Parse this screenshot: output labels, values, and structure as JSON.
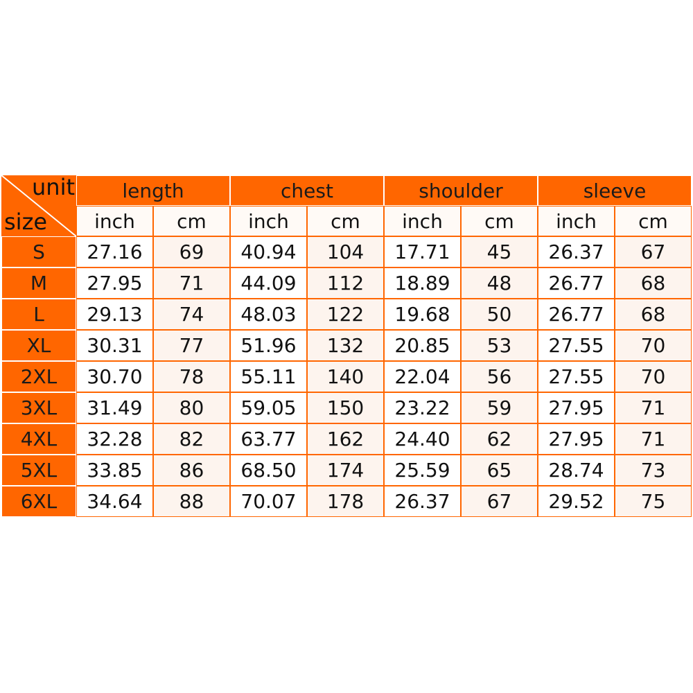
{
  "table": {
    "corner": {
      "top": "unit",
      "bottom": "size"
    },
    "groups": [
      "length",
      "chest",
      "shoulder",
      "sleeve"
    ],
    "subheaders": [
      "inch",
      "cm",
      "inch",
      "cm",
      "inch",
      "cm",
      "inch",
      "cm"
    ],
    "rows": [
      {
        "size": "S",
        "values": [
          "27.16",
          "69",
          "40.94",
          "104",
          "17.71",
          "45",
          "26.37",
          "67"
        ]
      },
      {
        "size": "M",
        "values": [
          "27.95",
          "71",
          "44.09",
          "112",
          "18.89",
          "48",
          "26.77",
          "68"
        ]
      },
      {
        "size": "L",
        "values": [
          "29.13",
          "74",
          "48.03",
          "122",
          "19.68",
          "50",
          "26.77",
          "68"
        ]
      },
      {
        "size": "XL",
        "values": [
          "30.31",
          "77",
          "51.96",
          "132",
          "20.85",
          "53",
          "27.55",
          "70"
        ]
      },
      {
        "size": "2XL",
        "values": [
          "30.70",
          "78",
          "55.11",
          "140",
          "22.04",
          "56",
          "27.55",
          "70"
        ]
      },
      {
        "size": "3XL",
        "values": [
          "31.49",
          "80",
          "59.05",
          "150",
          "23.22",
          "59",
          "27.95",
          "71"
        ]
      },
      {
        "size": "4XL",
        "values": [
          "32.28",
          "82",
          "63.77",
          "162",
          "24.40",
          "62",
          "27.95",
          "71"
        ]
      },
      {
        "size": "5XL",
        "values": [
          "33.85",
          "86",
          "68.50",
          "174",
          "25.59",
          "65",
          "28.74",
          "73"
        ]
      },
      {
        "size": "6XL",
        "values": [
          "34.64",
          "88",
          "70.07",
          "178",
          "26.37",
          "67",
          "29.52",
          "75"
        ]
      }
    ]
  }
}
